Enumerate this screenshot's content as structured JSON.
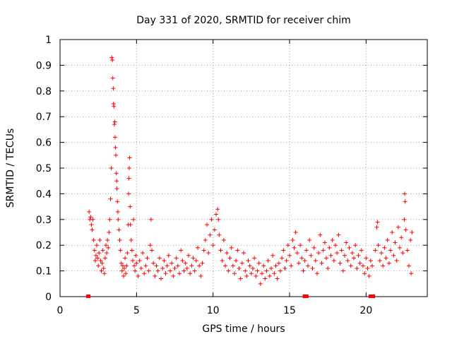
{
  "chart_data": {
    "type": "scatter",
    "title": "Day 331 of 2020, SRMTID for receiver chim",
    "xlabel": "GPS time / hours",
    "ylabel": "SRMTID / TECUs",
    "xlim": [
      0,
      24
    ],
    "ylim": [
      0,
      1
    ],
    "xticks": [
      0,
      5,
      10,
      15,
      20
    ],
    "xtick_labels": [
      "0",
      "5",
      "10",
      "15",
      "20"
    ],
    "yticks": [
      0,
      0.1,
      0.2,
      0.3,
      0.4,
      0.5,
      0.6,
      0.7,
      0.8,
      0.9,
      1
    ],
    "ytick_labels": [
      "0",
      "0.1",
      "0.2",
      "0.3",
      "0.4",
      "0.5",
      "0.6",
      "0.7",
      "0.8",
      "0.9",
      "1"
    ],
    "grid": true,
    "marker": "+",
    "color": "#ff0000",
    "baseline_markers_x": [
      1.85,
      16.0,
      16.1,
      20.3,
      20.45
    ],
    "series": [
      {
        "name": "SRMTID",
        "points": [
          [
            1.9,
            0.33
          ],
          [
            1.95,
            0.3
          ],
          [
            2.0,
            0.31
          ],
          [
            2.05,
            0.28
          ],
          [
            2.1,
            0.26
          ],
          [
            2.15,
            0.3
          ],
          [
            2.2,
            0.22
          ],
          [
            2.25,
            0.18
          ],
          [
            2.3,
            0.14
          ],
          [
            2.35,
            0.16
          ],
          [
            2.4,
            0.2
          ],
          [
            2.45,
            0.15
          ],
          [
            2.5,
            0.12
          ],
          [
            2.55,
            0.17
          ],
          [
            2.6,
            0.22
          ],
          [
            2.65,
            0.14
          ],
          [
            2.7,
            0.1
          ],
          [
            2.75,
            0.13
          ],
          [
            2.8,
            0.18
          ],
          [
            2.85,
            0.11
          ],
          [
            2.9,
            0.09
          ],
          [
            2.95,
            0.15
          ],
          [
            3.0,
            0.2
          ],
          [
            3.05,
            0.17
          ],
          [
            3.1,
            0.22
          ],
          [
            3.15,
            0.19
          ],
          [
            3.2,
            0.25
          ],
          [
            3.25,
            0.3
          ],
          [
            3.3,
            0.38
          ],
          [
            3.35,
            0.5
          ],
          [
            3.38,
            0.93
          ],
          [
            3.42,
            0.92
          ],
          [
            3.45,
            0.85
          ],
          [
            3.48,
            0.81
          ],
          [
            3.5,
            0.75
          ],
          [
            3.52,
            0.74
          ],
          [
            3.55,
            0.67
          ],
          [
            3.58,
            0.68
          ],
          [
            3.6,
            0.62
          ],
          [
            3.62,
            0.58
          ],
          [
            3.65,
            0.55
          ],
          [
            3.68,
            0.48
          ],
          [
            3.7,
            0.45
          ],
          [
            3.72,
            0.42
          ],
          [
            3.75,
            0.37
          ],
          [
            3.78,
            0.33
          ],
          [
            3.8,
            0.3
          ],
          [
            3.85,
            0.26
          ],
          [
            3.9,
            0.22
          ],
          [
            3.95,
            0.18
          ],
          [
            4.0,
            0.13
          ],
          [
            4.05,
            0.1
          ],
          [
            4.1,
            0.12
          ],
          [
            4.15,
            0.08
          ],
          [
            4.2,
            0.11
          ],
          [
            4.25,
            0.15
          ],
          [
            4.3,
            0.09
          ],
          [
            4.35,
            0.12
          ],
          [
            4.4,
            0.17
          ],
          [
            4.45,
            0.28
          ],
          [
            4.48,
            0.4
          ],
          [
            4.5,
            0.46
          ],
          [
            4.52,
            0.5
          ],
          [
            4.55,
            0.54
          ],
          [
            4.58,
            0.35
          ],
          [
            4.6,
            0.28
          ],
          [
            4.65,
            0.22
          ],
          [
            4.7,
            0.18
          ],
          [
            4.75,
            0.14
          ],
          [
            4.8,
            0.3
          ],
          [
            4.85,
            0.12
          ],
          [
            4.9,
            0.1
          ],
          [
            4.95,
            0.16
          ],
          [
            5.0,
            0.13
          ],
          [
            5.1,
            0.08
          ],
          [
            5.2,
            0.14
          ],
          [
            5.3,
            0.11
          ],
          [
            5.4,
            0.17
          ],
          [
            5.5,
            0.09
          ],
          [
            5.6,
            0.12
          ],
          [
            5.7,
            0.15
          ],
          [
            5.8,
            0.1
          ],
          [
            5.9,
            0.2
          ],
          [
            5.95,
            0.3
          ],
          [
            6.0,
            0.18
          ],
          [
            6.1,
            0.13
          ],
          [
            6.2,
            0.08
          ],
          [
            6.3,
            0.12
          ],
          [
            6.4,
            0.1
          ],
          [
            6.5,
            0.15
          ],
          [
            6.6,
            0.07
          ],
          [
            6.7,
            0.11
          ],
          [
            6.8,
            0.14
          ],
          [
            6.9,
            0.09
          ],
          [
            7.0,
            0.12
          ],
          [
            7.1,
            0.16
          ],
          [
            7.2,
            0.1
          ],
          [
            7.3,
            0.13
          ],
          [
            7.4,
            0.08
          ],
          [
            7.5,
            0.11
          ],
          [
            7.6,
            0.15
          ],
          [
            7.7,
            0.12
          ],
          [
            7.8,
            0.09
          ],
          [
            7.9,
            0.18
          ],
          [
            8.0,
            0.14
          ],
          [
            8.1,
            0.1
          ],
          [
            8.2,
            0.13
          ],
          [
            8.3,
            0.11
          ],
          [
            8.4,
            0.16
          ],
          [
            8.5,
            0.09
          ],
          [
            8.6,
            0.12
          ],
          [
            8.7,
            0.15
          ],
          [
            8.8,
            0.1
          ],
          [
            8.9,
            0.14
          ],
          [
            9.0,
            0.19
          ],
          [
            9.1,
            0.12
          ],
          [
            9.2,
            0.08
          ],
          [
            9.3,
            0.13
          ],
          [
            9.4,
            0.18
          ],
          [
            9.5,
            0.22
          ],
          [
            9.6,
            0.28
          ],
          [
            9.7,
            0.17
          ],
          [
            9.8,
            0.24
          ],
          [
            9.9,
            0.3
          ],
          [
            10.0,
            0.2
          ],
          [
            10.1,
            0.26
          ],
          [
            10.2,
            0.32
          ],
          [
            10.3,
            0.34
          ],
          [
            10.35,
            0.3
          ],
          [
            10.4,
            0.24
          ],
          [
            10.5,
            0.18
          ],
          [
            10.6,
            0.14
          ],
          [
            10.7,
            0.22
          ],
          [
            10.8,
            0.12
          ],
          [
            10.9,
            0.17
          ],
          [
            11.0,
            0.1
          ],
          [
            11.1,
            0.15
          ],
          [
            11.2,
            0.19
          ],
          [
            11.3,
            0.12
          ],
          [
            11.4,
            0.09
          ],
          [
            11.5,
            0.14
          ],
          [
            11.6,
            0.18
          ],
          [
            11.7,
            0.11
          ],
          [
            11.8,
            0.07
          ],
          [
            11.9,
            0.13
          ],
          [
            12.0,
            0.17
          ],
          [
            12.1,
            0.1
          ],
          [
            12.2,
            0.08
          ],
          [
            12.3,
            0.14
          ],
          [
            12.4,
            0.12
          ],
          [
            12.5,
            0.09
          ],
          [
            12.6,
            0.11
          ],
          [
            12.7,
            0.15
          ],
          [
            12.8,
            0.08
          ],
          [
            12.9,
            0.1
          ],
          [
            13.0,
            0.13
          ],
          [
            13.1,
            0.05
          ],
          [
            13.2,
            0.09
          ],
          [
            13.3,
            0.12
          ],
          [
            13.4,
            0.07
          ],
          [
            13.5,
            0.1
          ],
          [
            13.6,
            0.14
          ],
          [
            13.7,
            0.08
          ],
          [
            13.8,
            0.11
          ],
          [
            13.9,
            0.16
          ],
          [
            14.0,
            0.09
          ],
          [
            14.1,
            0.12
          ],
          [
            14.2,
            0.07
          ],
          [
            14.3,
            0.13
          ],
          [
            14.4,
            0.1
          ],
          [
            14.5,
            0.15
          ],
          [
            14.6,
            0.18
          ],
          [
            14.7,
            0.11
          ],
          [
            14.8,
            0.14
          ],
          [
            14.9,
            0.2
          ],
          [
            15.0,
            0.16
          ],
          [
            15.1,
            0.12
          ],
          [
            15.2,
            0.22
          ],
          [
            15.3,
            0.19
          ],
          [
            15.4,
            0.25
          ],
          [
            15.5,
            0.17
          ],
          [
            15.6,
            0.13
          ],
          [
            15.7,
            0.2
          ],
          [
            15.8,
            0.15
          ],
          [
            15.9,
            0.1
          ],
          [
            16.0,
            0.14
          ],
          [
            16.1,
            0.18
          ],
          [
            16.2,
            0.12
          ],
          [
            16.3,
            0.22
          ],
          [
            16.4,
            0.16
          ],
          [
            16.5,
            0.11
          ],
          [
            16.6,
            0.19
          ],
          [
            16.7,
            0.14
          ],
          [
            16.8,
            0.09
          ],
          [
            16.9,
            0.17
          ],
          [
            17.0,
            0.24
          ],
          [
            17.1,
            0.13
          ],
          [
            17.2,
            0.18
          ],
          [
            17.3,
            0.21
          ],
          [
            17.4,
            0.15
          ],
          [
            17.5,
            0.11
          ],
          [
            17.6,
            0.19
          ],
          [
            17.7,
            0.16
          ],
          [
            17.8,
            0.22
          ],
          [
            17.9,
            0.14
          ],
          [
            18.0,
            0.2
          ],
          [
            18.1,
            0.17
          ],
          [
            18.2,
            0.24
          ],
          [
            18.3,
            0.13
          ],
          [
            18.4,
            0.18
          ],
          [
            18.5,
            0.1
          ],
          [
            18.6,
            0.16
          ],
          [
            18.7,
            0.21
          ],
          [
            18.8,
            0.14
          ],
          [
            18.9,
            0.19
          ],
          [
            19.0,
            0.12
          ],
          [
            19.1,
            0.17
          ],
          [
            19.2,
            0.15
          ],
          [
            19.3,
            0.2
          ],
          [
            19.4,
            0.11
          ],
          [
            19.5,
            0.16
          ],
          [
            19.6,
            0.13
          ],
          [
            19.7,
            0.18
          ],
          [
            19.8,
            0.12
          ],
          [
            19.9,
            0.09
          ],
          [
            20.0,
            0.15
          ],
          [
            20.1,
            0.11
          ],
          [
            20.2,
            0.08
          ],
          [
            20.3,
            0.14
          ],
          [
            20.4,
            0.12
          ],
          [
            20.6,
            0.18
          ],
          [
            20.7,
            0.27
          ],
          [
            20.75,
            0.29
          ],
          [
            20.8,
            0.2
          ],
          [
            20.9,
            0.14
          ],
          [
            21.0,
            0.17
          ],
          [
            21.1,
            0.12
          ],
          [
            21.2,
            0.19
          ],
          [
            21.3,
            0.15
          ],
          [
            21.4,
            0.22
          ],
          [
            21.5,
            0.13
          ],
          [
            21.6,
            0.18
          ],
          [
            21.7,
            0.25
          ],
          [
            21.8,
            0.16
          ],
          [
            21.9,
            0.21
          ],
          [
            22.0,
            0.14
          ],
          [
            22.1,
            0.27
          ],
          [
            22.2,
            0.19
          ],
          [
            22.3,
            0.23
          ],
          [
            22.4,
            0.17
          ],
          [
            22.5,
            0.3
          ],
          [
            22.52,
            0.4
          ],
          [
            22.55,
            0.37
          ],
          [
            22.6,
            0.26
          ],
          [
            22.7,
            0.18
          ],
          [
            22.8,
            0.12
          ],
          [
            22.9,
            0.22
          ],
          [
            22.95,
            0.09
          ],
          [
            23.0,
            0.25
          ]
        ]
      }
    ]
  }
}
